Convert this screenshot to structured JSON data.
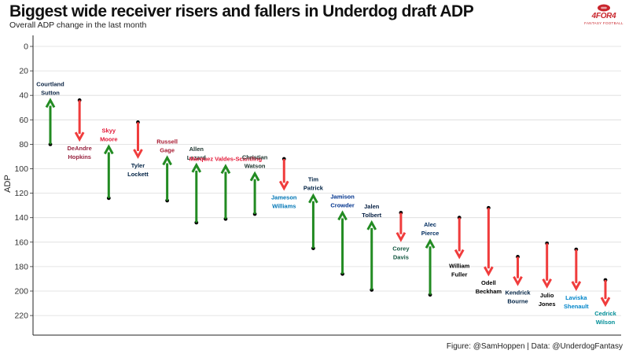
{
  "chart_data": {
    "type": "arrow",
    "title": "Biggest wide receiver risers and fallers in Underdog draft ADP",
    "subtitle": "Overall ADP change in the last month",
    "ylabel": "ADP",
    "xlabel": "",
    "ylim": [
      0,
      228
    ],
    "y_reversed": true,
    "y_ticks": [
      0,
      20,
      40,
      60,
      80,
      100,
      120,
      140,
      160,
      180,
      200,
      220
    ],
    "grid": true,
    "colors": {
      "riser": "#228b22",
      "faller": "#f03c3c"
    },
    "players": [
      {
        "name": "Courtland Sutton",
        "from": 80,
        "to": 44,
        "label_color": "#0a2343"
      },
      {
        "name": "DeAndre Hopkins",
        "from": 44,
        "to": 76,
        "label_color": "#97233f"
      },
      {
        "name": "Skyy Moore",
        "from": 124,
        "to": 82,
        "label_color": "#e31837"
      },
      {
        "name": "Tyler Lockett",
        "from": 62,
        "to": 90,
        "label_color": "#002244"
      },
      {
        "name": "Russell Gage",
        "from": 126,
        "to": 91,
        "label_color": "#a71930"
      },
      {
        "name": "Allen Lazard",
        "from": 144,
        "to": 97,
        "label_color": "#203731"
      },
      {
        "name": "Marquez Valdes-Scantling",
        "from": 141,
        "to": 98,
        "label_color": "#e31837"
      },
      {
        "name": "Christian Watson",
        "from": 137,
        "to": 104,
        "label_color": "#203731"
      },
      {
        "name": "Jameson Williams",
        "from": 92,
        "to": 116,
        "label_color": "#0076b6"
      },
      {
        "name": "Tim Patrick",
        "from": 165,
        "to": 122,
        "label_color": "#002244"
      },
      {
        "name": "Jamison Crowder",
        "from": 186,
        "to": 136,
        "label_color": "#00338d"
      },
      {
        "name": "Jalen Tolbert",
        "from": 199,
        "to": 144,
        "label_color": "#041e42"
      },
      {
        "name": "Corey Davis",
        "from": 136,
        "to": 158,
        "label_color": "#125740"
      },
      {
        "name": "Alec Pierce",
        "from": 203,
        "to": 159,
        "label_color": "#002c5f"
      },
      {
        "name": "William Fuller",
        "from": 140,
        "to": 172,
        "label_color": "#000000"
      },
      {
        "name": "Odell Beckham",
        "from": 132,
        "to": 186,
        "label_color": "#000000"
      },
      {
        "name": "Kendrick Bourne",
        "from": 172,
        "to": 194,
        "label_color": "#002244"
      },
      {
        "name": "Julio Jones",
        "from": 161,
        "to": 196,
        "label_color": "#000000"
      },
      {
        "name": "Laviska Shenault",
        "from": 166,
        "to": 198,
        "label_color": "#0085ca"
      },
      {
        "name": "Cedrick Wilson",
        "from": 191,
        "to": 211,
        "label_color": "#008e97"
      }
    ]
  },
  "caption": "Figure: @SamHoppen | Data: @UnderdogFantasy",
  "logo": {
    "text": "4FOR4",
    "subtext": "FANTASY FOOTBALL",
    "color": "#c9252c"
  }
}
